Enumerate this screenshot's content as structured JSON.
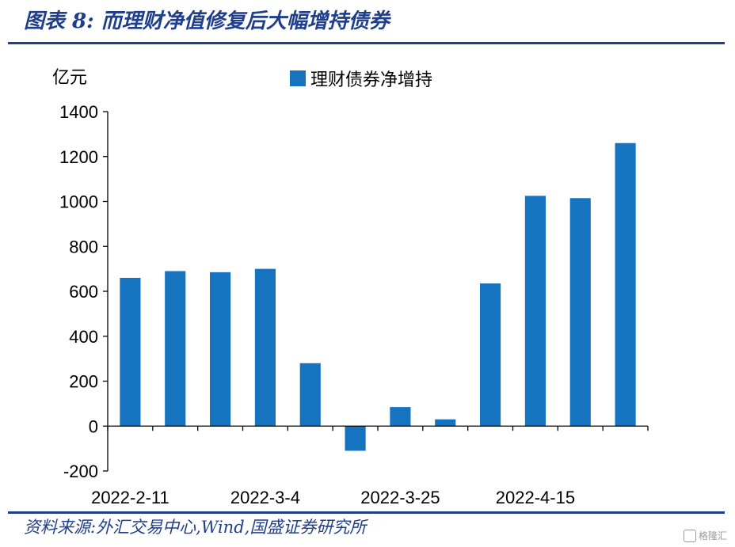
{
  "header": {
    "title": "图表 8:  而理财净值修复后大幅增持债券"
  },
  "footer": {
    "source": "资料来源:外汇交易中心,Wind,国盛证券研究所",
    "watermark": "格隆汇"
  },
  "chart_data": {
    "type": "bar",
    "unit_label": "亿元",
    "series": [
      {
        "name": "理财债券净增持",
        "color": "#1673c0",
        "values": [
          660,
          690,
          685,
          700,
          280,
          -110,
          85,
          30,
          635,
          1025,
          1015,
          1260
        ]
      }
    ],
    "categories": [
      "2022-2-11",
      "",
      "",
      "2022-3-4",
      "",
      "",
      "2022-3-25",
      "",
      "",
      "2022-4-15",
      "",
      ""
    ],
    "ylim": [
      -200,
      1400
    ],
    "yticks": [
      -200,
      0,
      200,
      400,
      600,
      800,
      1000,
      1200,
      1400
    ],
    "legend_position": "top-center",
    "grid": false
  }
}
